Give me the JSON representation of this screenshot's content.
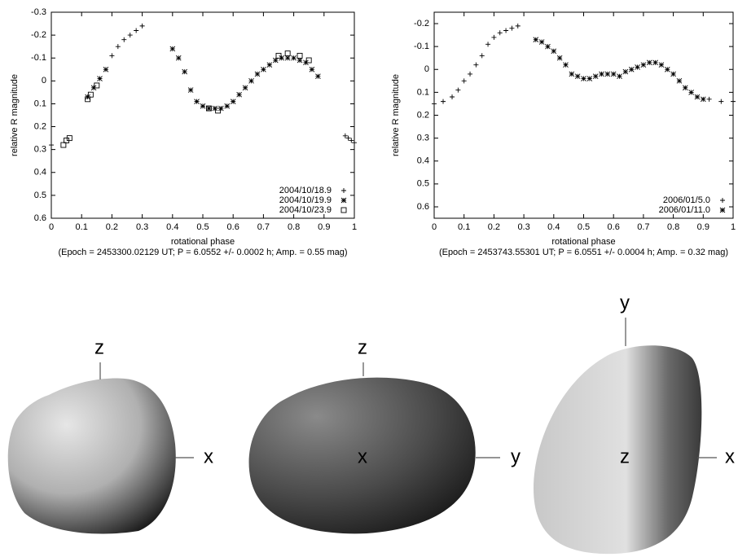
{
  "chart_data": [
    {
      "type": "scatter",
      "x_label": "rotational phase",
      "y_label": "relative R magnitude",
      "subtitle": "(Epoch = 2453300.02129 UT; P = 6.0552 +/- 0.0002 h; Amp. = 0.55 mag)",
      "xlim": [
        0,
        1
      ],
      "xticks": [
        0,
        0.1,
        0.2,
        0.3,
        0.4,
        0.5,
        0.6,
        0.7,
        0.8,
        0.9,
        1
      ],
      "ylim": [
        0.6,
        -0.3
      ],
      "yticks": [
        -0.3,
        -0.2,
        -0.1,
        0,
        0.1,
        0.2,
        0.3,
        0.4,
        0.5,
        0.6
      ],
      "grid": false,
      "legend": "bottom-right",
      "series": [
        {
          "name": "2004/10/18.9",
          "color": "#000000",
          "marker": "plus",
          "x": [
            0.0,
            0.2,
            0.22,
            0.24,
            0.26,
            0.28,
            0.3,
            0.97,
            0.98,
            0.99,
            1.0
          ],
          "values": [
            0.28,
            -0.11,
            -0.15,
            -0.18,
            -0.2,
            -0.22,
            -0.24,
            0.24,
            0.25,
            0.26,
            0.27
          ]
        },
        {
          "name": "2004/10/19.9",
          "color": "#000000",
          "marker": "cross",
          "x": [
            0.12,
            0.14,
            0.16,
            0.18,
            0.4,
            0.42,
            0.44,
            0.46,
            0.48,
            0.5,
            0.52,
            0.54,
            0.56,
            0.58,
            0.6,
            0.62,
            0.64,
            0.66,
            0.68,
            0.7,
            0.72,
            0.74,
            0.76,
            0.78,
            0.8,
            0.82,
            0.84,
            0.86,
            0.88
          ],
          "values": [
            0.07,
            0.03,
            -0.01,
            -0.05,
            -0.14,
            -0.1,
            -0.04,
            0.04,
            0.09,
            0.11,
            0.12,
            0.12,
            0.12,
            0.11,
            0.09,
            0.06,
            0.03,
            0.0,
            -0.03,
            -0.05,
            -0.07,
            -0.09,
            -0.1,
            -0.1,
            -0.1,
            -0.09,
            -0.08,
            -0.05,
            -0.02
          ]
        },
        {
          "name": "2004/10/23.9",
          "color": "#000000",
          "marker": "square",
          "x": [
            0.04,
            0.05,
            0.06,
            0.12,
            0.13,
            0.15,
            0.52,
            0.55,
            0.75,
            0.78,
            0.82,
            0.85
          ],
          "values": [
            0.28,
            0.26,
            0.25,
            0.08,
            0.06,
            0.02,
            0.12,
            0.13,
            -0.11,
            -0.12,
            -0.11,
            -0.09
          ]
        }
      ]
    },
    {
      "type": "scatter",
      "x_label": "rotational phase",
      "y_label": "relative R magnitude",
      "subtitle": "(Epoch = 2453743.55301 UT; P = 6.0551 +/- 0.0004 h; Amp. = 0.32 mag)",
      "xlim": [
        0,
        1
      ],
      "xticks": [
        0,
        0.1,
        0.2,
        0.3,
        0.4,
        0.5,
        0.6,
        0.7,
        0.8,
        0.9,
        1
      ],
      "ylim": [
        0.65,
        -0.25
      ],
      "yticks": [
        -0.2,
        -0.1,
        0,
        0.1,
        0.2,
        0.3,
        0.4,
        0.5,
        0.6
      ],
      "grid": false,
      "legend": "bottom-right",
      "series": [
        {
          "name": "2006/01/5.0",
          "color": "#000000",
          "marker": "plus",
          "x": [
            0.0,
            0.03,
            0.06,
            0.08,
            0.1,
            0.12,
            0.14,
            0.16,
            0.18,
            0.2,
            0.22,
            0.24,
            0.26,
            0.28,
            0.92,
            0.96,
            1.0
          ],
          "values": [
            0.15,
            0.14,
            0.12,
            0.09,
            0.05,
            0.02,
            -0.02,
            -0.06,
            -0.11,
            -0.14,
            -0.16,
            -0.17,
            -0.18,
            -0.19,
            0.13,
            0.14,
            0.14
          ]
        },
        {
          "name": "2006/01/11.0",
          "color": "#000000",
          "marker": "cross",
          "x": [
            0.34,
            0.36,
            0.38,
            0.4,
            0.42,
            0.44,
            0.46,
            0.48,
            0.5,
            0.52,
            0.54,
            0.56,
            0.58,
            0.6,
            0.62,
            0.64,
            0.66,
            0.68,
            0.7,
            0.72,
            0.74,
            0.76,
            0.78,
            0.8,
            0.82,
            0.84,
            0.86,
            0.88,
            0.9
          ],
          "values": [
            -0.13,
            -0.12,
            -0.1,
            -0.08,
            -0.05,
            -0.02,
            0.02,
            0.03,
            0.04,
            0.04,
            0.03,
            0.02,
            0.02,
            0.02,
            0.03,
            0.01,
            0.0,
            -0.01,
            -0.02,
            -0.03,
            -0.03,
            -0.02,
            0.0,
            0.02,
            0.05,
            0.08,
            0.1,
            0.12,
            0.13
          ]
        }
      ]
    }
  ],
  "shape_views": [
    {
      "labels": [
        "z",
        "x"
      ]
    },
    {
      "labels": [
        "z",
        "x",
        "y"
      ]
    },
    {
      "labels": [
        "y",
        "z",
        "x"
      ]
    }
  ]
}
